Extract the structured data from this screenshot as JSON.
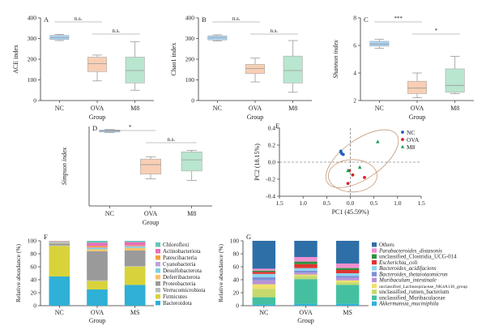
{
  "chart_data": [
    {
      "id": "A",
      "type": "boxplot",
      "panel_label": "A",
      "ylabel": "ACE index",
      "xlabel": "Group",
      "categories": [
        "NC",
        "OVA",
        "M8"
      ],
      "ylim": [
        0,
        400
      ],
      "yticks": [
        0,
        100,
        200,
        300,
        400
      ],
      "boxes": [
        {
          "q1": 295,
          "median": 305,
          "q3": 315,
          "min": 290,
          "max": 320
        },
        {
          "q1": 140,
          "median": 178,
          "q3": 210,
          "min": 95,
          "max": 220
        },
        {
          "q1": 85,
          "median": 145,
          "q3": 210,
          "min": 50,
          "max": 285
        }
      ],
      "significance": [
        {
          "from": 0,
          "to": 1,
          "label": "n.s."
        },
        {
          "from": 1,
          "to": 2,
          "label": "n.s."
        }
      ]
    },
    {
      "id": "B",
      "type": "boxplot",
      "panel_label": "B",
      "ylabel": "Chao1 index",
      "xlabel": "Group",
      "categories": [
        "NC",
        "OVA",
        "M8"
      ],
      "ylim": [
        0,
        400
      ],
      "yticks": [
        0,
        100,
        200,
        300,
        400
      ],
      "boxes": [
        {
          "q1": 293,
          "median": 303,
          "q3": 313,
          "min": 288,
          "max": 318
        },
        {
          "q1": 130,
          "median": 155,
          "q3": 175,
          "min": 90,
          "max": 205
        },
        {
          "q1": 85,
          "median": 145,
          "q3": 215,
          "min": 40,
          "max": 290
        }
      ],
      "significance": [
        {
          "from": 0,
          "to": 1,
          "label": "n.s."
        },
        {
          "from": 1,
          "to": 2,
          "label": "n.s."
        }
      ]
    },
    {
      "id": "C",
      "type": "boxplot",
      "panel_label": "C",
      "ylabel": "Shannon index",
      "xlabel": "Group",
      "categories": [
        "NC",
        "OVA",
        "M8"
      ],
      "ylim": [
        2,
        8
      ],
      "yticks": [
        2,
        4,
        6,
        8
      ],
      "boxes": [
        {
          "q1": 5.95,
          "median": 6.1,
          "q3": 6.3,
          "min": 5.8,
          "max": 6.45
        },
        {
          "q1": 2.5,
          "median": 2.9,
          "q3": 3.4,
          "min": 2.2,
          "max": 4.0
        },
        {
          "q1": 2.6,
          "median": 3.1,
          "q3": 4.3,
          "min": 2.5,
          "max": 5.2
        }
      ],
      "significance": [
        {
          "from": 0,
          "to": 1,
          "label": "***"
        },
        {
          "from": 1,
          "to": 2,
          "label": "*"
        }
      ]
    },
    {
      "id": "D",
      "type": "boxplot",
      "panel_label": "D",
      "ylabel": "Simpson index",
      "xlabel": "Group",
      "categories": [
        "NC",
        "OVA",
        "M8"
      ],
      "ylim": [
        0.5,
        1.0
      ],
      "yticks": [],
      "boxes": [
        {
          "q1": 0.965,
          "median": 0.972,
          "q3": 0.978,
          "min": 0.962,
          "max": 0.981
        },
        {
          "q1": 0.7,
          "median": 0.76,
          "q3": 0.795,
          "min": 0.67,
          "max": 0.81
        },
        {
          "q1": 0.72,
          "median": 0.79,
          "q3": 0.84,
          "min": 0.66,
          "max": 0.85
        }
      ],
      "significance": [
        {
          "from": 0,
          "to": 1,
          "label": "*"
        },
        {
          "from": 1,
          "to": 2,
          "label": "n.s."
        }
      ]
    },
    {
      "id": "E",
      "type": "scatter",
      "panel_label": "E",
      "xlabel": "PC1 (45.59%)",
      "ylabel": "PC2 (18.15%)",
      "xlim": [
        -1.5,
        1.5
      ],
      "ylim": [
        -0.4,
        0.4
      ],
      "xticks": [
        "1.5",
        "1.0",
        "0.5",
        "0.0",
        "0.5",
        "1.0",
        "1.5"
      ],
      "xtick_values": [
        -1.5,
        -1.0,
        -0.5,
        0.0,
        0.5,
        1.0,
        1.5
      ],
      "yticks": [
        -0.4,
        -0.2,
        0.0,
        0.2,
        0.4
      ],
      "legend": "top-right",
      "series": [
        {
          "name": "NC",
          "marker": "circle",
          "points": [
            [
              -0.2,
              0.12
            ],
            [
              -0.18,
              0.1
            ],
            [
              -0.15,
              0.09
            ],
            [
              -0.2,
              0.13
            ]
          ]
        },
        {
          "name": "OVA",
          "marker": "circle",
          "points": [
            [
              -0.05,
              -0.25
            ],
            [
              0.3,
              -0.18
            ],
            [
              0.05,
              -0.15
            ],
            [
              -0.02,
              -0.1
            ]
          ]
        },
        {
          "name": "M8",
          "marker": "triangle",
          "points": [
            [
              0.58,
              0.24
            ],
            [
              0.2,
              -0.06
            ],
            [
              -0.05,
              -0.1
            ]
          ]
        }
      ]
    },
    {
      "id": "F",
      "type": "stacked_bar",
      "panel_label": "F",
      "ylabel": "Relative abundance (%)",
      "xlabel": "Group",
      "categories": [
        "NC",
        "OVA",
        "MS"
      ],
      "ylim": [
        0,
        100
      ],
      "yticks": [
        0,
        20,
        40,
        60,
        80,
        100
      ],
      "series": [
        {
          "name": "Bacteroidota",
          "values": [
            45,
            25,
            32
          ]
        },
        {
          "name": "Firmicutes",
          "values": [
            47,
            13,
            28
          ]
        },
        {
          "name": "Verrucomicrobiota",
          "values": [
            1,
            1,
            1
          ]
        },
        {
          "name": "Proteobacteria",
          "values": [
            3,
            45,
            24
          ]
        },
        {
          "name": "Deferribacterota",
          "values": [
            1,
            3,
            4
          ]
        },
        {
          "name": "Desulfobacterota",
          "values": [
            1,
            2,
            2
          ]
        },
        {
          "name": "Cyanobacteria",
          "values": [
            1,
            1,
            1
          ]
        },
        {
          "name": "Patescibacteria",
          "values": [
            0.5,
            2,
            1
          ]
        },
        {
          "name": "Actinobacteriota",
          "values": [
            0.3,
            5,
            5
          ]
        },
        {
          "name": "Chloroflexi",
          "values": [
            0.2,
            3,
            2
          ]
        }
      ]
    },
    {
      "id": "G",
      "type": "stacked_bar",
      "panel_label": "G",
      "ylabel": "Relative abundance (%)",
      "xlabel": "Group",
      "categories": [
        "NC",
        "OVA",
        "MS"
      ],
      "ylim": [
        0,
        100
      ],
      "yticks": [
        0,
        20,
        40,
        60,
        80,
        100
      ],
      "series": [
        {
          "name": "Akkermansia_muciniphila",
          "italic": true,
          "values": [
            2,
            3,
            3
          ]
        },
        {
          "name": "unclassified_Muribaculaceae",
          "italic": false,
          "values": [
            11,
            38,
            29
          ]
        },
        {
          "name": "unclassified_rumen_bacterium",
          "italic": false,
          "values": [
            13,
            5,
            4
          ]
        },
        {
          "name": "unclassified_Lachnospiraceae_NK4A136_group",
          "italic": false,
          "values": [
            7,
            2,
            3
          ]
        },
        {
          "name": "Muribaculum_intestinale",
          "italic": true,
          "values": [
            6,
            3,
            4
          ]
        },
        {
          "name": "Bacteroides_thetaiotaomicron",
          "italic": true,
          "values": [
            5,
            3,
            3
          ]
        },
        {
          "name": "Bacteroides_acidifaciens",
          "italic": true,
          "values": [
            5,
            4,
            4
          ]
        },
        {
          "name": "Escherichia_coli",
          "italic": true,
          "values": [
            3,
            6,
            5
          ]
        },
        {
          "name": "unclassified_Clostridia_UCG-014",
          "italic": false,
          "values": [
            2,
            4,
            3
          ]
        },
        {
          "name": "Parabacteroides_distasonis",
          "italic": true,
          "values": [
            3,
            7,
            7
          ]
        },
        {
          "name": "Others",
          "italic": false,
          "values": [
            43,
            25,
            35
          ]
        }
      ]
    }
  ],
  "palette": {
    "box": [
      "#a8d4f5",
      "#f8cfb4",
      "#b9e6cf"
    ],
    "box_median": "#999999",
    "pca": {
      "NC": "#1f5fbf",
      "OVA": "#d81f26",
      "M8": "#1ba05a"
    },
    "ellipse": "#c49a7a",
    "F": [
      "#2fb0d6",
      "#d8d33a",
      "#bdbdbd",
      "#9a9a9a",
      "#f7c36b",
      "#7bd1e0",
      "#c1a2d8",
      "#f6a03a",
      "#e96db8",
      "#67c6b6"
    ],
    "G": [
      "#2fb3d6",
      "#44c0a0",
      "#c5d96e",
      "#efe06c",
      "#b892d6",
      "#7b8fd6",
      "#8dd4ee",
      "#e3342f",
      "#2f8f3f",
      "#ef8fcf",
      "#2f6fa8"
    ]
  }
}
